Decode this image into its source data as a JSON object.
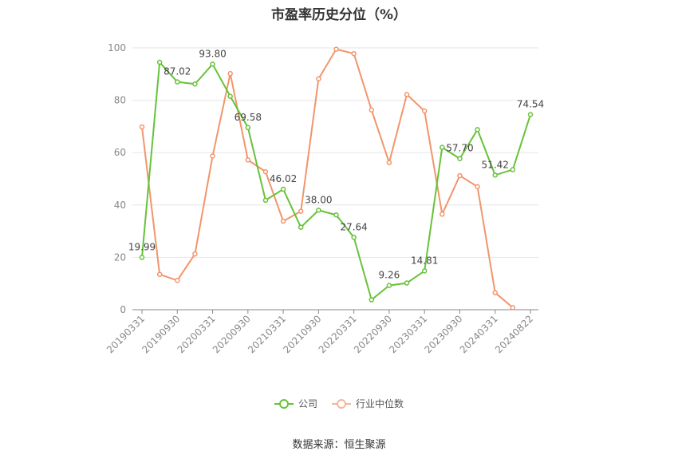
{
  "chart_data": {
    "type": "line",
    "title": "市盈率历史分位（%）",
    "x": [
      "20190331",
      "20190630",
      "20190930",
      "20191231",
      "20200331",
      "20200630",
      "20200930",
      "20201231",
      "20210331",
      "20210630",
      "20210930",
      "20211231",
      "20220331",
      "20220630",
      "20220930",
      "20221231",
      "20230331",
      "20230630",
      "20230930",
      "20231231",
      "20240331",
      "20240630",
      "20240822"
    ],
    "x_tick_labels": [
      "20190331",
      "20190930",
      "20200331",
      "20200930",
      "20210331",
      "20210930",
      "20220331",
      "20220930",
      "20230331",
      "20230930",
      "20240331",
      "20240822"
    ],
    "ylim": [
      0,
      100
    ],
    "y_ticks": [
      0,
      20,
      40,
      60,
      80,
      100
    ],
    "grid": true,
    "legend_position": "bottom",
    "series": [
      {
        "name": "公司",
        "color": "#67c23a",
        "values": [
          19.99,
          94.5,
          87.02,
          86.2,
          93.8,
          81.5,
          69.58,
          41.8,
          46.02,
          31.5,
          38.0,
          36.2,
          27.64,
          3.8,
          9.26,
          10.2,
          14.81,
          62.0,
          57.7,
          68.8,
          51.42,
          53.5,
          74.54
        ],
        "data_labels": [
          "19.99",
          null,
          "87.02",
          null,
          "93.80",
          null,
          "69.58",
          null,
          "46.02",
          null,
          "38.00",
          null,
          "27.64",
          null,
          "9.26",
          null,
          "14.81",
          null,
          "57.70",
          null,
          "51.42",
          null,
          "74.54"
        ]
      },
      {
        "name": "行业中位数",
        "color": "#f2956b",
        "values": [
          69.8,
          13.5,
          11.2,
          21.3,
          58.7,
          90.2,
          57.2,
          52.7,
          33.8,
          37.6,
          88.2,
          99.5,
          97.8,
          76.3,
          56.2,
          82.2,
          75.9,
          36.5,
          51.2,
          47.0,
          6.5,
          0.8,
          null
        ]
      }
    ]
  },
  "source_text": "数据来源：恒生聚源"
}
